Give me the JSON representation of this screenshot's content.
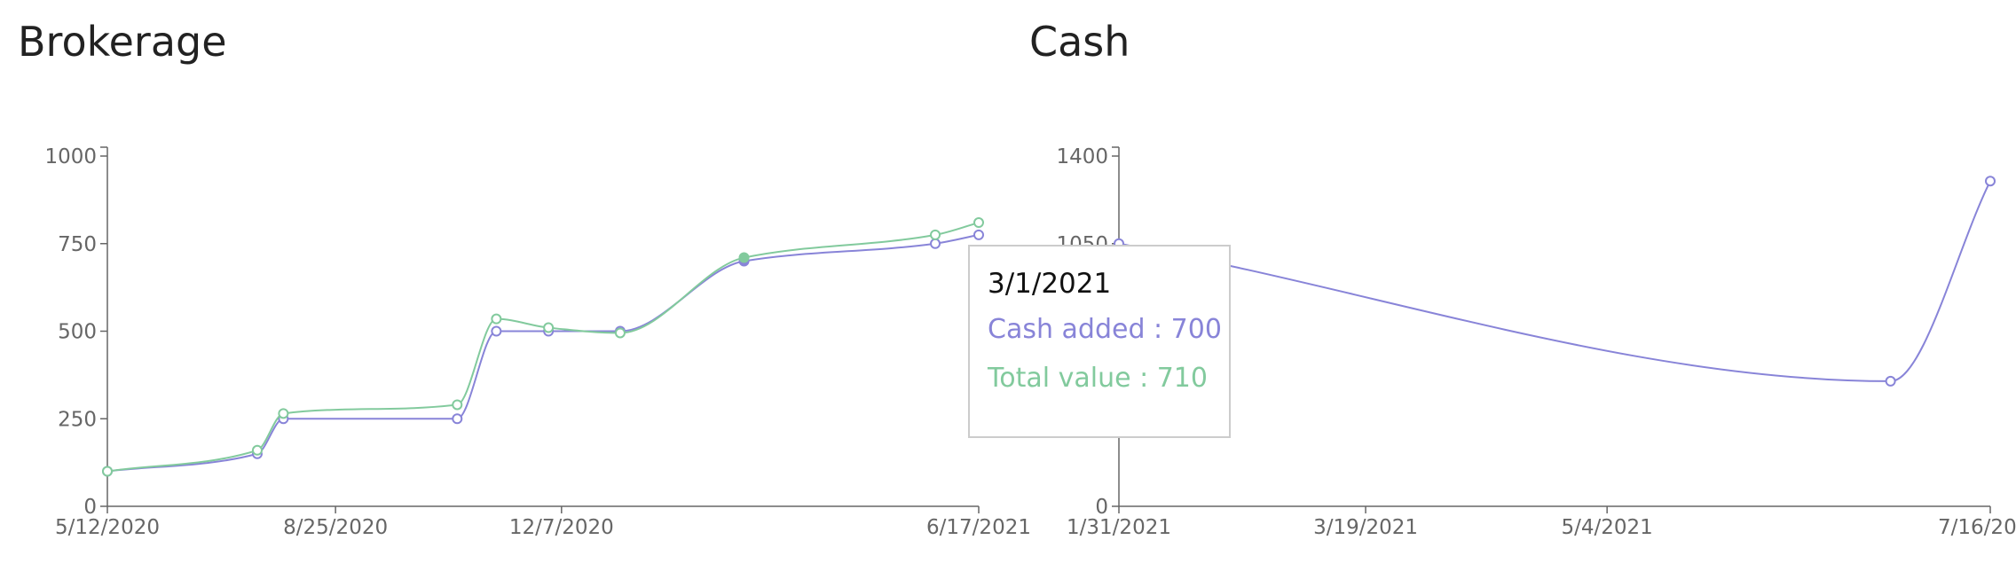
{
  "colors": {
    "cash_added": "#8884d8",
    "total_value": "#82ca9d",
    "axis": "#666666"
  },
  "chart_data": [
    {
      "type": "line",
      "title": "Brokerage",
      "x": [
        "5/12/2020",
        "7/20/2020",
        "8/1/2020",
        "10/20/2020",
        "11/7/2020",
        "12/1/2020",
        "1/3/2021",
        "3/1/2021",
        "5/28/2021",
        "6/17/2021"
      ],
      "x_days": [
        0,
        69,
        81,
        161,
        179,
        203,
        236,
        293,
        381,
        401
      ],
      "x_ticks": [
        "5/12/2020",
        "8/25/2020",
        "12/7/2020",
        "6/17/2021"
      ],
      "x_tick_days": [
        0,
        105,
        209,
        401
      ],
      "y_ticks": [
        "0",
        "250",
        "500",
        "750",
        "1000"
      ],
      "ylim": [
        0,
        1000
      ],
      "series": [
        {
          "key": "cash_added",
          "name": "Cash added",
          "values": [
            100,
            150,
            250,
            250,
            500,
            500,
            500,
            700,
            750,
            775
          ]
        },
        {
          "key": "total_value",
          "name": "Total value",
          "values": [
            100,
            160,
            265,
            290,
            535,
            510,
            495,
            710,
            775,
            810
          ]
        }
      ],
      "active_point_index": 7
    },
    {
      "type": "line",
      "title": "Cash",
      "x": [
        "1/31/2021",
        "6/27/2021",
        "7/16/2021"
      ],
      "x_days": [
        0,
        147,
        166
      ],
      "x_ticks": [
        "1/31/2021",
        "3/19/2021",
        "5/4/2021",
        "7/16/2021"
      ],
      "x_tick_days": [
        0,
        47,
        93,
        166
      ],
      "y_ticks": [
        "0",
        "1050",
        "1400"
      ],
      "ylim": [
        0,
        1400
      ],
      "series": [
        {
          "key": "cash_added",
          "name": "Cash added",
          "values": [
            1050,
            500,
            1300
          ]
        }
      ]
    }
  ],
  "tooltip": {
    "label": "3/1/2021",
    "cash_added": "Cash added : 700",
    "total_value": "Total value : 710"
  }
}
